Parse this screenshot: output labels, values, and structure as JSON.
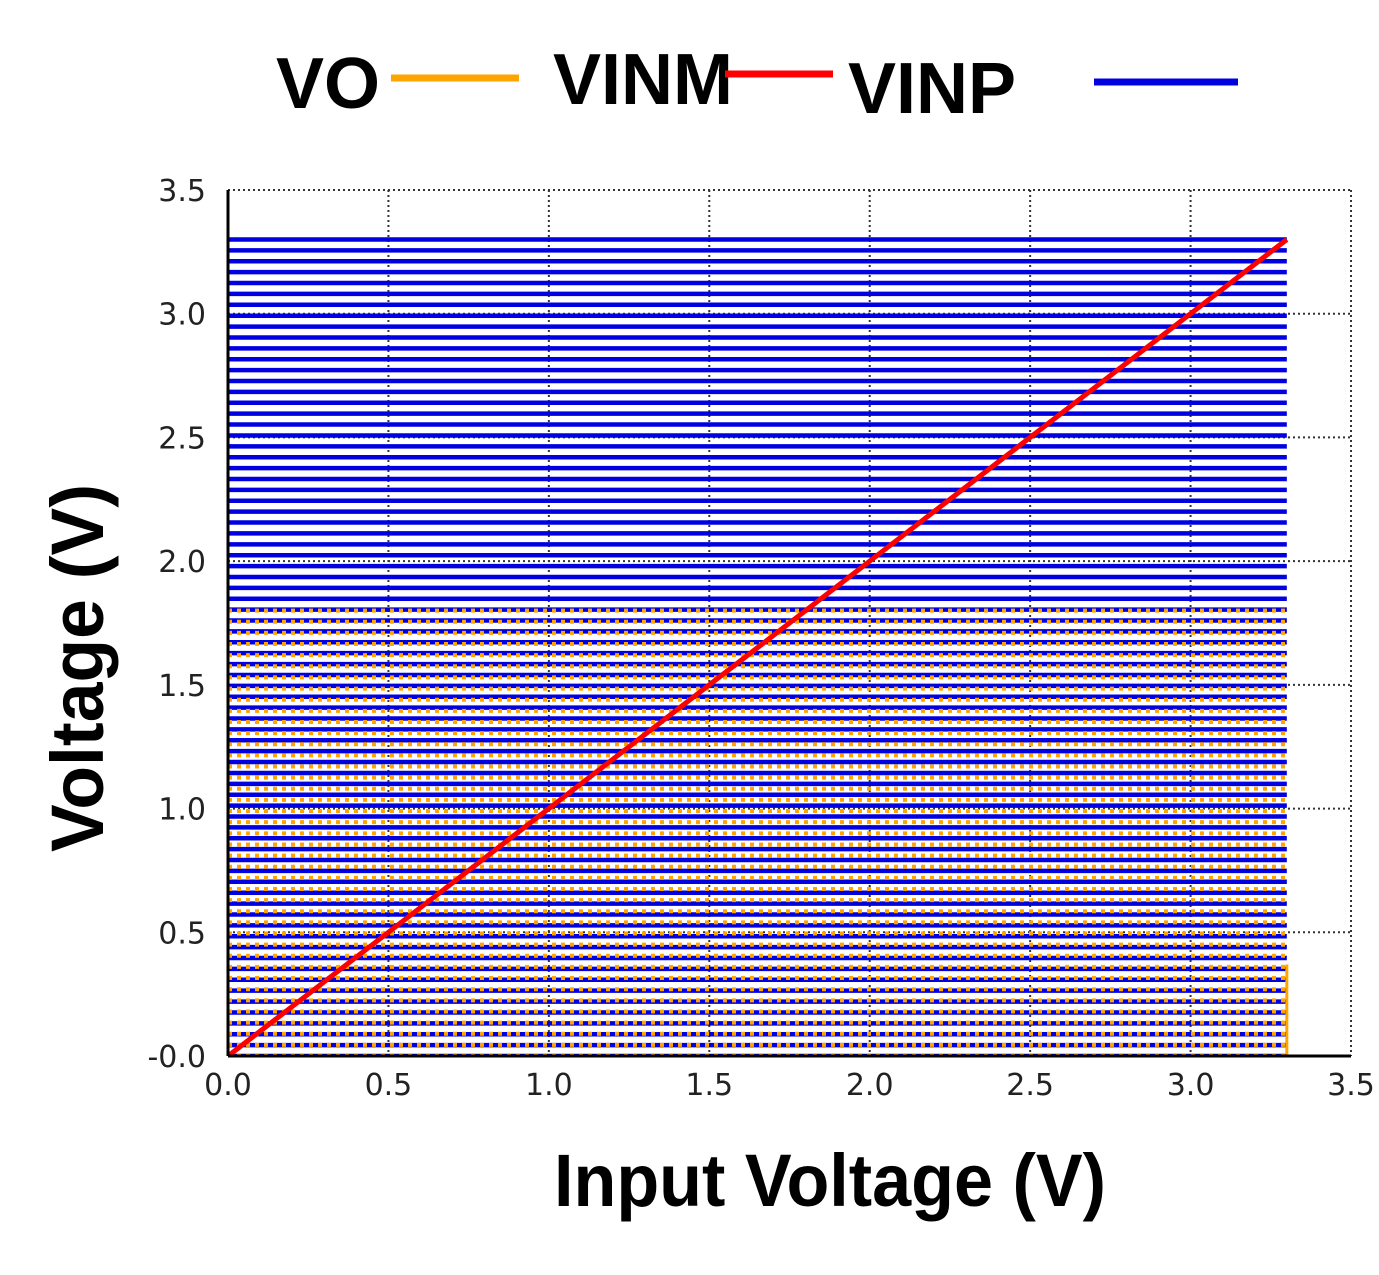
{
  "chart_data": {
    "type": "line",
    "title": "",
    "xlabel": "Input Voltage  (V)",
    "ylabel": "Voltage  (V)",
    "xlim": [
      0,
      3.5
    ],
    "ylim": [
      0,
      3.5
    ],
    "x_ticks": [
      "0.0",
      "0.5",
      "1.0",
      "1.5",
      "2.0",
      "2.5",
      "3.0",
      "3.5"
    ],
    "y_ticks": [
      "-0.0",
      "0.5",
      "1.0",
      "1.5",
      "2.0",
      "2.5",
      "3.0",
      "3.5"
    ],
    "grid": true,
    "legend_position": "top",
    "series": [
      {
        "name": "VO",
        "color": "#FFA500",
        "kind": "horizontal-sweep",
        "x_range": [
          0,
          3.3
        ],
        "y_range": [
          0,
          1.8
        ],
        "note": "family of flat curves from 0 V to 1.8 V"
      },
      {
        "name": "VINM",
        "color": "#FF0000",
        "x": [
          0,
          3.3
        ],
        "y": [
          0,
          3.3
        ]
      },
      {
        "name": "VINP",
        "color": "#0000E0",
        "kind": "horizontal-sweep",
        "x_range": [
          0,
          3.3
        ],
        "y_range": [
          0,
          3.3
        ],
        "note": "family of flat curves from 0 V to 3.3 V"
      }
    ]
  }
}
